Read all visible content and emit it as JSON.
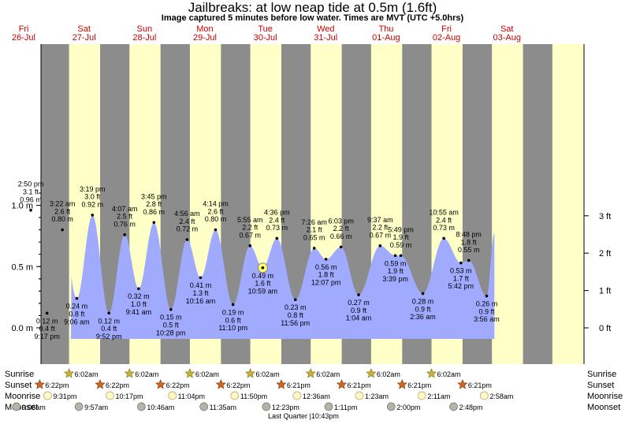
{
  "page": {
    "title": "Jailbreaks: at low  neap tide at 0.5m (1.6ft)",
    "subtitle": "Image captured 5 minutes before low water. Times are MVT (UTC +5.0hrs)",
    "last_quarter": "Last Quarter |10:43pm"
  },
  "colors": {
    "day_bg": "#ffffc8",
    "night_bg": "#8c8c8c",
    "water": "#a0aaff",
    "day_label": "#cc0000",
    "now_marker": "#ffff66"
  },
  "chart_data": {
    "type": "area",
    "title": "Jailbreaks: at low  neap tide at 0.5m (1.6ft)",
    "days": [
      {
        "day": "Fri",
        "date": "26-Jul"
      },
      {
        "day": "Sat",
        "date": "27-Jul"
      },
      {
        "day": "Sun",
        "date": "28-Jul"
      },
      {
        "day": "Mon",
        "date": "29-Jul"
      },
      {
        "day": "Tue",
        "date": "30-Jul"
      },
      {
        "day": "Wed",
        "date": "31-Jul"
      },
      {
        "day": "Thu",
        "date": "01-Aug"
      },
      {
        "day": "Fri",
        "date": "02-Aug"
      },
      {
        "day": "Sat",
        "date": "03-Aug"
      }
    ],
    "left_axis": {
      "unit": "m",
      "ylim": [
        -0.05,
        1.15
      ],
      "ticks": [
        "0.0 m",
        "0.5 m",
        "1.0 m"
      ]
    },
    "right_axis": {
      "unit": "ft",
      "ticks": [
        "0 ft",
        "1 ft",
        "2 ft",
        "3 ft"
      ]
    },
    "day_start_hour": 0,
    "sunrise_hour": 6.033,
    "sunset_hour": 18.367,
    "extremes": [
      {
        "day": 0,
        "time": "2:50 pm",
        "hour": 14.83,
        "m": "0.96 m",
        "ft": "3.1 ft",
        "value": 0.96,
        "type": "high"
      },
      {
        "day": 0,
        "time": "9:17 pm",
        "hour": 21.28,
        "m": "0.12 m",
        "ft": "0.4 ft",
        "value": 0.12,
        "type": "low"
      },
      {
        "day": 1,
        "time": "3:22 am",
        "hour": 3.37,
        "m": "0.80 m",
        "ft": "2.6 ft",
        "value": 0.8,
        "type": "high"
      },
      {
        "day": 1,
        "time": "9:06 am",
        "hour": 9.1,
        "m": "0.24 m",
        "ft": "0.8 ft",
        "value": 0.24,
        "type": "low"
      },
      {
        "day": 1,
        "time": "3:19 pm",
        "hour": 15.32,
        "m": "0.92 m",
        "ft": "3.0 ft",
        "value": 0.92,
        "type": "high"
      },
      {
        "day": 1,
        "time": "9:52 pm",
        "hour": 21.87,
        "m": "0.12 m",
        "ft": "0.4 ft",
        "value": 0.12,
        "type": "low"
      },
      {
        "day": 2,
        "time": "4:07 am",
        "hour": 4.12,
        "m": "0.76 m",
        "ft": "2.5 ft",
        "value": 0.76,
        "type": "high"
      },
      {
        "day": 2,
        "time": "9:41 am",
        "hour": 9.68,
        "m": "0.32 m",
        "ft": "1.0 ft",
        "value": 0.32,
        "type": "low"
      },
      {
        "day": 2,
        "time": "3:45 pm",
        "hour": 15.75,
        "m": "0.86 m",
        "ft": "2.8 ft",
        "value": 0.86,
        "type": "high"
      },
      {
        "day": 2,
        "time": "10:28 pm",
        "hour": 22.47,
        "m": "0.15 m",
        "ft": "0.5 ft",
        "value": 0.15,
        "type": "low"
      },
      {
        "day": 3,
        "time": "4:56 am",
        "hour": 4.93,
        "m": "0.72 m",
        "ft": "2.4 ft",
        "value": 0.72,
        "type": "high"
      },
      {
        "day": 3,
        "time": "10:16 am",
        "hour": 10.27,
        "m": "0.41 m",
        "ft": "1.3 ft",
        "value": 0.41,
        "type": "low"
      },
      {
        "day": 3,
        "time": "4:14 pm",
        "hour": 16.23,
        "m": "0.80 m",
        "ft": "2.6 ft",
        "value": 0.8,
        "type": "high"
      },
      {
        "day": 3,
        "time": "11:10 pm",
        "hour": 23.17,
        "m": "0.19 m",
        "ft": "0.6 ft",
        "value": 0.19,
        "type": "low"
      },
      {
        "day": 4,
        "time": "5:55 am",
        "hour": 5.92,
        "m": "0.67 m",
        "ft": "2.2 ft",
        "value": 0.67,
        "type": "high"
      },
      {
        "day": 4,
        "time": "10:59 am",
        "hour": 10.98,
        "m": "0.49 m",
        "ft": "1.6 ft",
        "value": 0.49,
        "type": "low",
        "now": true
      },
      {
        "day": 4,
        "time": "4:36 pm",
        "hour": 16.6,
        "m": "0.73 m",
        "ft": "2.4 ft",
        "value": 0.73,
        "type": "high"
      },
      {
        "day": 4,
        "time": "11:56 pm",
        "hour": 23.93,
        "m": "0.23 m",
        "ft": "0.8 ft",
        "value": 0.23,
        "type": "low"
      },
      {
        "day": 5,
        "time": "7:26 am",
        "hour": 7.43,
        "m": "0.65 m",
        "ft": "2.1 ft",
        "value": 0.65,
        "type": "high"
      },
      {
        "day": 5,
        "time": "12:07 pm",
        "hour": 12.12,
        "m": "0.56 m",
        "ft": "1.8 ft",
        "value": 0.56,
        "type": "low"
      },
      {
        "day": 5,
        "time": "6:03 pm",
        "hour": 18.05,
        "m": "0.66 m",
        "ft": "2.2 ft",
        "value": 0.66,
        "type": "high"
      },
      {
        "day": 6,
        "time": "1:04 am",
        "hour": 1.07,
        "m": "0.27 m",
        "ft": "0.9 ft",
        "value": 0.27,
        "type": "low"
      },
      {
        "day": 6,
        "time": "9:37 am",
        "hour": 9.62,
        "m": "0.67 m",
        "ft": "2.2 ft",
        "value": 0.67,
        "type": "high"
      },
      {
        "day": 6,
        "time": "3:39 pm",
        "hour": 15.65,
        "m": "0.59 m",
        "ft": "1.9 ft",
        "value": 0.59,
        "type": "low"
      },
      {
        "day": 6,
        "time": "5:49 pm",
        "hour": 17.82,
        "m": "0.59 m",
        "ft": "1.9 ft",
        "value": 0.59,
        "type": "high"
      },
      {
        "day": 7,
        "time": "2:36 am",
        "hour": 2.6,
        "m": "0.28 m",
        "ft": "0.9 ft",
        "value": 0.28,
        "type": "low"
      },
      {
        "day": 7,
        "time": "10:55 am",
        "hour": 10.92,
        "m": "0.73 m",
        "ft": "2.4 ft",
        "value": 0.73,
        "type": "high"
      },
      {
        "day": 7,
        "time": "5:42 pm",
        "hour": 17.7,
        "m": "0.53 m",
        "ft": "1.7 ft",
        "value": 0.53,
        "type": "low"
      },
      {
        "day": 7,
        "time": "8:48 pm",
        "hour": 20.8,
        "m": "0.55 m",
        "ft": "1.8 ft",
        "value": 0.55,
        "type": "high"
      },
      {
        "day": 8,
        "time": "3:56 am",
        "hour": 3.93,
        "m": "0.26 m",
        "ft": "0.9 ft",
        "value": 0.26,
        "type": "low"
      }
    ],
    "end_value": 0.77,
    "end_hour": 7.0,
    "astro": {
      "rows": [
        "Sunrise",
        "Sunset",
        "Moonrise",
        "Moonset"
      ],
      "sunrise": [
        {
          "day": 1,
          "hour": 6.03,
          "label": "6:02am"
        },
        {
          "day": 2,
          "hour": 6.03,
          "label": "6:02am"
        },
        {
          "day": 3,
          "hour": 6.03,
          "label": "6:02am"
        },
        {
          "day": 4,
          "hour": 6.03,
          "label": "6:02am"
        },
        {
          "day": 5,
          "hour": 6.03,
          "label": "6:02am"
        },
        {
          "day": 6,
          "hour": 6.03,
          "label": "6:02am"
        },
        {
          "day": 7,
          "hour": 6.03,
          "label": "6:02am"
        }
      ],
      "sunset": [
        {
          "day": 0,
          "hour": 18.37,
          "label": "6:22pm"
        },
        {
          "day": 1,
          "hour": 18.37,
          "label": "6:22pm"
        },
        {
          "day": 2,
          "hour": 18.37,
          "label": "6:22pm"
        },
        {
          "day": 3,
          "hour": 18.37,
          "label": "6:22pm"
        },
        {
          "day": 4,
          "hour": 18.35,
          "label": "6:21pm"
        },
        {
          "day": 5,
          "hour": 18.35,
          "label": "6:21pm"
        },
        {
          "day": 6,
          "hour": 18.35,
          "label": "6:21pm"
        },
        {
          "day": 7,
          "hour": 18.35,
          "label": "6:21pm"
        }
      ],
      "moonrise": [
        {
          "day": 0,
          "hour": 21.52,
          "label": "9:31pm"
        },
        {
          "day": 1,
          "hour": 22.28,
          "label": "10:17pm"
        },
        {
          "day": 2,
          "hour": 23.07,
          "label": "11:04pm"
        },
        {
          "day": 3,
          "hour": 23.83,
          "label": "11:50pm"
        },
        {
          "day": 5,
          "hour": 0.6,
          "label": "12:36am"
        },
        {
          "day": 6,
          "hour": 1.38,
          "label": "1:23am"
        },
        {
          "day": 7,
          "hour": 2.18,
          "label": "2:11am"
        },
        {
          "day": 8,
          "hour": 2.97,
          "label": "2:58am"
        }
      ],
      "moonset": [
        {
          "day": 0,
          "hour": 9.1,
          "label": "9:06am"
        },
        {
          "day": 1,
          "hour": 9.95,
          "label": "9:57am"
        },
        {
          "day": 2,
          "hour": 10.77,
          "label": "10:46am"
        },
        {
          "day": 3,
          "hour": 11.58,
          "label": "11:35am"
        },
        {
          "day": 4,
          "hour": 12.38,
          "label": "12:23pm"
        },
        {
          "day": 5,
          "hour": 13.18,
          "label": "1:11pm"
        },
        {
          "day": 6,
          "hour": 14.0,
          "label": "2:00pm"
        },
        {
          "day": 7,
          "hour": 14.8,
          "label": "2:48pm"
        }
      ]
    }
  }
}
